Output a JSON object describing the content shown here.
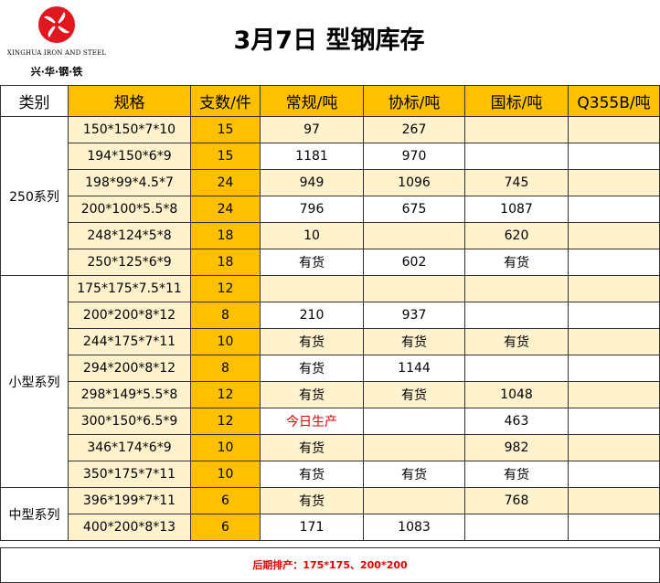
{
  "logo": {
    "name_en": "XINGHUA IRON AND STEEL",
    "name_cn": "兴·华·钢·铁",
    "color": "#E0171F"
  },
  "title": "3月7日 型钢库存",
  "headers": [
    "类别",
    "规格",
    "支数/件",
    "常规/吨",
    "协标/吨",
    "国标/吨",
    "Q355B/吨"
  ],
  "groups": [
    {
      "name": "250系列",
      "rows": [
        {
          "spec": "150*150*7*10",
          "count": "15",
          "regular": "97",
          "assoc": "267",
          "national": "",
          "q355b": ""
        },
        {
          "spec": "194*150*6*9",
          "count": "15",
          "regular": "1181",
          "assoc": "970",
          "national": "",
          "q355b": ""
        },
        {
          "spec": "198*99*4.5*7",
          "count": "24",
          "regular": "949",
          "assoc": "1096",
          "national": "745",
          "q355b": ""
        },
        {
          "spec": "200*100*5.5*8",
          "count": "24",
          "regular": "796",
          "assoc": "675",
          "national": "1087",
          "q355b": ""
        },
        {
          "spec": "248*124*5*8",
          "count": "18",
          "regular": "10",
          "assoc": "",
          "national": "620",
          "q355b": ""
        },
        {
          "spec": "250*125*6*9",
          "count": "18",
          "regular": "有货",
          "assoc": "602",
          "national": "有货",
          "q355b": ""
        }
      ]
    },
    {
      "name": "小型系列",
      "rows": [
        {
          "spec": "175*175*7.5*11",
          "count": "12",
          "regular": "",
          "assoc": "",
          "national": "",
          "q355b": ""
        },
        {
          "spec": "200*200*8*12",
          "count": "8",
          "regular": "210",
          "assoc": "937",
          "national": "",
          "q355b": ""
        },
        {
          "spec": "244*175*7*11",
          "count": "10",
          "regular": "有货",
          "assoc": "有货",
          "national": "有货",
          "q355b": ""
        },
        {
          "spec": "294*200*8*12",
          "count": "8",
          "regular": "有货",
          "assoc": "1144",
          "national": "",
          "q355b": ""
        },
        {
          "spec": "298*149*5.5*8",
          "count": "12",
          "regular": "有货",
          "assoc": "有货",
          "national": "1048",
          "q355b": ""
        },
        {
          "spec": "300*150*6.5*9",
          "count": "12",
          "regular": "今日生产",
          "assoc": "",
          "national": "463",
          "q355b": ""
        },
        {
          "spec": "346*174*6*9",
          "count": "10",
          "regular": "有货",
          "assoc": "",
          "national": "982",
          "q355b": ""
        },
        {
          "spec": "350*175*7*11",
          "count": "10",
          "regular": "有货",
          "assoc": "有货",
          "national": "有货",
          "q355b": ""
        }
      ]
    },
    {
      "name": "中型系列",
      "rows": [
        {
          "spec": "396*199*7*11",
          "count": "6",
          "regular": "有货",
          "assoc": "",
          "national": "768",
          "q355b": ""
        },
        {
          "spec": "400*200*8*13",
          "count": "6",
          "regular": "171",
          "assoc": "1083",
          "national": "",
          "q355b": ""
        }
      ]
    }
  ],
  "footer": "后期排产：175*175、200*200",
  "colors": {
    "header_fill": "#FFC000",
    "row_shade": "#FFF2CC",
    "highlight_text": "#E00000"
  }
}
